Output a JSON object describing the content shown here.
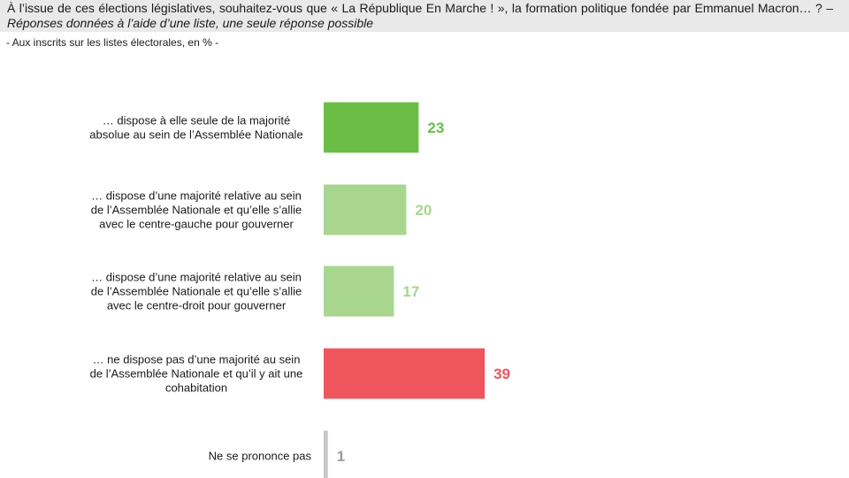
{
  "header": {
    "question": "À l’issue de ces élections législatives, souhaitez-vous que « La République En Marche ! », la formation politique fondée par Emmanuel Macron… ? –",
    "question_note": "Réponses données à l’aide d’une liste, une seule réponse possible",
    "subtitle": "- Aux inscrits sur les listes électorales, en % -"
  },
  "colors": {
    "dark_green": "#6cbd45",
    "light_green": "#a8d68f",
    "red": "#ee555c",
    "grey": "#c7c7c7",
    "grey_label": "#9b9b9b"
  },
  "chart_data": {
    "type": "bar",
    "orientation": "horizontal",
    "categories": [
      [
        "… dispose à elle seule de la majorité",
        "absolue au sein de l’Assemblée Nationale"
      ],
      [
        "… dispose d’une majorité relative au sein",
        "de l’Assemblée Nationale et qu’elle s’allie",
        "avec le centre-gauche pour gouverner"
      ],
      [
        "… dispose d’une majorité relative au sein",
        "de l’Assemblée Nationale et qu’elle s’allie",
        "avec le centre-droit pour gouverner"
      ],
      [
        "… ne dispose pas d’une majorité au sein",
        "de l’Assemblée Nationale et qu’il y ait une",
        "cohabitation"
      ],
      [
        "Ne se prononce pas"
      ]
    ],
    "values": [
      23,
      20,
      17,
      39,
      1
    ],
    "bar_colors": [
      "#6cbd45",
      "#a8d68f",
      "#a8d68f",
      "#ee555c",
      "#c7c7c7"
    ],
    "label_colors": [
      "#6cbd45",
      "#a8d68f",
      "#a8d68f",
      "#ee555c",
      "#9b9b9b"
    ],
    "axis": "none",
    "grid": false,
    "legend": "none",
    "data_labels": true
  }
}
